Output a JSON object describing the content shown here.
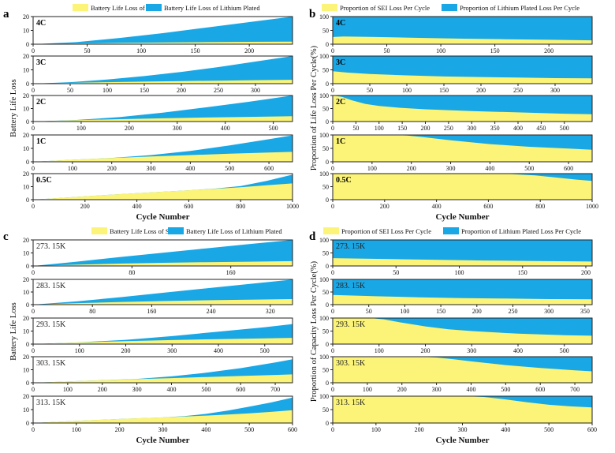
{
  "colors": {
    "sei": "#fbf478",
    "lithium": "#1aa7e6",
    "frame": "#222222"
  },
  "panels": [
    {
      "letter": "a",
      "legend": [
        "Battery Life Loss of SEI",
        "Battery Life Loss of Lithium Plated"
      ],
      "ylabel": "Battery Life Loss",
      "xlabel": "Cycle Number",
      "label_style": "bold"
    },
    {
      "letter": "b",
      "legend": [
        "Proportion of SEI Loss Per Cycle",
        "Proportion of Lithium Plated Loss Per Cycle"
      ],
      "ylabel": "Proportion of Life Loss Per Cycle(%)",
      "xlabel": "Cycle Number",
      "label_style": "bold"
    },
    {
      "letter": "c",
      "legend": [
        "Battery Life Loss of SEI",
        "Battery Life Loss of Lithium Plated"
      ],
      "ylabel": "Battery Life Loss",
      "xlabel": "Cycle Number",
      "label_style": "mono"
    },
    {
      "letter": "d",
      "legend": [
        "Proportion of SEI Loss Per Cycle",
        "Proportion of Lithium Plated Loss Per Cycle"
      ],
      "ylabel": "Proportion of Capacity Loss Per Cycle(%)",
      "xlabel": "Cycle Number",
      "label_style": "mono"
    }
  ],
  "chart_data": [
    {
      "panel": "a",
      "type": "area",
      "stacked": true,
      "subplots": [
        {
          "label": "4C",
          "xlim": [
            0,
            240
          ],
          "ylim": [
            0,
            20
          ],
          "xticks": [
            50,
            100,
            150,
            200
          ],
          "yticks": [
            0,
            10,
            20
          ],
          "x": [
            0,
            40,
            80,
            120,
            160,
            200,
            240
          ],
          "sei": [
            0,
            0.5,
            0.9,
            1.2,
            1.5,
            1.7,
            1.9
          ],
          "lithium": [
            0,
            1.0,
            3.6,
            6.8,
            10.5,
            14.3,
            18.1
          ]
        },
        {
          "label": "3C",
          "xlim": [
            0,
            350
          ],
          "ylim": [
            0,
            20
          ],
          "xticks": [
            50,
            100,
            150,
            200,
            250,
            300
          ],
          "yticks": [
            0,
            10,
            20
          ],
          "x": [
            0,
            50,
            100,
            150,
            200,
            250,
            300,
            350
          ],
          "sei": [
            0,
            0.6,
            1.1,
            1.5,
            1.9,
            2.2,
            2.5,
            2.8
          ],
          "lithium": [
            0,
            0.5,
            1.9,
            4.0,
            6.6,
            9.8,
            13.5,
            17.2
          ]
        },
        {
          "label": "2C",
          "xlim": [
            0,
            540
          ],
          "ylim": [
            0,
            20
          ],
          "xticks": [
            100,
            200,
            300,
            400,
            500
          ],
          "yticks": [
            0,
            10,
            20
          ],
          "x": [
            0,
            90,
            180,
            270,
            360,
            450,
            540
          ],
          "sei": [
            0,
            1.0,
            1.8,
            2.5,
            3.1,
            3.6,
            4.1
          ],
          "lithium": [
            0,
            0.2,
            1.6,
            4.3,
            7.8,
            11.6,
            15.9
          ]
        },
        {
          "label": "1C",
          "xlim": [
            0,
            660
          ],
          "ylim": [
            0,
            20
          ],
          "xticks": [
            100,
            200,
            300,
            400,
            500,
            600
          ],
          "yticks": [
            0,
            10,
            20
          ],
          "x": [
            0,
            100,
            200,
            300,
            400,
            500,
            600,
            660
          ],
          "sei": [
            0,
            1.5,
            2.8,
            4.0,
            5.0,
            6.0,
            6.9,
            7.4
          ],
          "lithium": [
            0,
            0,
            0.1,
            1.0,
            3.1,
            6.2,
            9.9,
            12.3
          ]
        },
        {
          "label": "0.5C",
          "xlim": [
            0,
            1000
          ],
          "ylim": [
            0,
            20
          ],
          "xticks": [
            200,
            400,
            600,
            800,
            1000
          ],
          "yticks": [
            0,
            10,
            20
          ],
          "x": [
            0,
            200,
            400,
            600,
            700,
            800,
            900,
            1000
          ],
          "sei": [
            0,
            2.6,
            5.0,
            7.2,
            8.3,
            9.5,
            11.0,
            12.5
          ],
          "lithium": [
            0,
            0,
            0,
            0,
            0.2,
            1.0,
            3.4,
            6.8
          ]
        }
      ]
    },
    {
      "panel": "b",
      "type": "area",
      "stacked": true,
      "subplots": [
        {
          "label": "4C",
          "xlim": [
            0,
            240
          ],
          "ylim": [
            0,
            100
          ],
          "xticks": [
            50,
            100,
            150,
            200
          ],
          "yticks": [
            0,
            50,
            100
          ],
          "x": [
            0,
            10,
            40,
            80,
            120,
            160,
            200,
            240
          ],
          "sei": [
            26,
            28,
            26,
            23,
            20,
            18,
            16,
            14
          ]
        },
        {
          "label": "3C",
          "xlim": [
            0,
            350
          ],
          "ylim": [
            0,
            100
          ],
          "xticks": [
            50,
            100,
            150,
            200,
            250,
            300
          ],
          "yticks": [
            0,
            50,
            100
          ],
          "x": [
            0,
            20,
            50,
            100,
            150,
            200,
            250,
            300,
            350
          ],
          "sei": [
            45,
            40,
            35,
            30,
            26,
            24,
            22,
            20,
            19
          ]
        },
        {
          "label": "2C",
          "xlim": [
            0,
            560
          ],
          "ylim": [
            0,
            100
          ],
          "xticks": [
            50,
            100,
            150,
            200,
            250,
            300,
            350,
            400,
            450,
            500
          ],
          "yticks": [
            0,
            50,
            100
          ],
          "x": [
            0,
            20,
            40,
            70,
            100,
            150,
            200,
            300,
            400,
            500,
            560
          ],
          "sei": [
            100,
            95,
            82,
            68,
            60,
            52,
            47,
            40,
            35,
            30,
            28
          ]
        },
        {
          "label": "1C",
          "xlim": [
            0,
            660
          ],
          "ylim": [
            0,
            100
          ],
          "xticks": [
            100,
            200,
            300,
            400,
            500,
            600
          ],
          "yticks": [
            0,
            50,
            100
          ],
          "x": [
            0,
            150,
            190,
            230,
            300,
            400,
            500,
            600,
            660
          ],
          "sei": [
            100,
            100,
            98,
            92,
            80,
            66,
            56,
            49,
            45
          ]
        },
        {
          "label": "0.5C",
          "xlim": [
            0,
            1000
          ],
          "ylim": [
            0,
            100
          ],
          "xticks": [
            200,
            400,
            600,
            800,
            1000
          ],
          "yticks": [
            0,
            50,
            100
          ],
          "x": [
            0,
            500,
            650,
            700,
            780,
            860,
            940,
            1000
          ],
          "sei": [
            100,
            100,
            100,
            98,
            93,
            85,
            77,
            72
          ]
        }
      ]
    },
    {
      "panel": "c",
      "type": "area",
      "stacked": true,
      "subplots": [
        {
          "label": "273. 15K",
          "xlim": [
            0,
            210
          ],
          "ylim": [
            0,
            20
          ],
          "xticks": [
            80,
            160
          ],
          "yticks": [
            0,
            10,
            20
          ],
          "x": [
            0,
            35,
            70,
            105,
            140,
            175,
            210
          ],
          "sei": [
            0,
            1.0,
            1.8,
            2.4,
            2.9,
            3.3,
            3.7
          ],
          "lithium": [
            0,
            2.3,
            5.0,
            7.8,
            10.6,
            13.5,
            16.3
          ]
        },
        {
          "label": "283. 15K",
          "xlim": [
            0,
            350
          ],
          "ylim": [
            0,
            20
          ],
          "xticks": [
            80,
            160,
            240,
            320
          ],
          "yticks": [
            0,
            10,
            20
          ],
          "x": [
            0,
            60,
            120,
            180,
            240,
            300,
            350
          ],
          "sei": [
            0,
            1.2,
            2.1,
            2.9,
            3.5,
            4.0,
            4.4
          ],
          "lithium": [
            0,
            1.4,
            3.9,
            6.8,
            9.8,
            12.9,
            15.4
          ]
        },
        {
          "label": "293. 15K",
          "xlim": [
            0,
            560
          ],
          "ylim": [
            0,
            20
          ],
          "xticks": [
            100,
            200,
            300,
            400,
            500
          ],
          "yticks": [
            0,
            10,
            20
          ],
          "x": [
            0,
            100,
            200,
            300,
            400,
            500,
            560
          ],
          "sei": [
            0,
            1.3,
            2.3,
            3.1,
            3.8,
            4.4,
            4.8
          ],
          "lithium": [
            0,
            0.1,
            1.0,
            3.0,
            5.8,
            8.6,
            10.6
          ]
        },
        {
          "label": "303. 15K",
          "xlim": [
            0,
            750
          ],
          "ylim": [
            0,
            20
          ],
          "xticks": [
            100,
            200,
            300,
            400,
            500,
            600,
            700
          ],
          "yticks": [
            0,
            10,
            20
          ],
          "x": [
            0,
            150,
            300,
            400,
            500,
            600,
            700,
            750
          ],
          "sei": [
            0,
            1.5,
            2.8,
            3.6,
            4.4,
            5.2,
            6.0,
            6.4
          ],
          "lithium": [
            0,
            0,
            0.2,
            1.3,
            3.3,
            6.0,
            9.6,
            11.6
          ]
        },
        {
          "label": "313. 15K",
          "xlim": [
            0,
            600
          ],
          "ylim": [
            0,
            20
          ],
          "xticks": [
            100,
            200,
            300,
            400,
            500,
            600
          ],
          "yticks": [
            0,
            10,
            20
          ],
          "x": [
            0,
            100,
            200,
            300,
            350,
            400,
            450,
            500,
            550,
            600
          ],
          "sei": [
            0,
            1.6,
            3.0,
            4.2,
            4.8,
            5.5,
            6.3,
            7.2,
            8.3,
            9.6
          ],
          "lithium": [
            0,
            0,
            0,
            0,
            0.3,
            1.3,
            3.0,
            5.0,
            7.0,
            9.4
          ]
        }
      ]
    },
    {
      "panel": "d",
      "type": "area",
      "stacked": true,
      "subplots": [
        {
          "label": "273. 15K",
          "xlim": [
            0,
            205
          ],
          "ylim": [
            0,
            100
          ],
          "xticks": [
            50,
            100,
            150,
            200
          ],
          "yticks": [
            0,
            50,
            100
          ],
          "x": [
            0,
            40,
            80,
            120,
            160,
            205
          ],
          "sei": [
            30,
            27,
            24,
            21,
            19,
            17
          ]
        },
        {
          "label": "283. 15K",
          "xlim": [
            0,
            360
          ],
          "ylim": [
            0,
            100
          ],
          "xticks": [
            50,
            100,
            150,
            200,
            250,
            300,
            350
          ],
          "yticks": [
            0,
            50,
            100
          ],
          "x": [
            0,
            60,
            120,
            180,
            240,
            300,
            360
          ],
          "sei": [
            38,
            33,
            29,
            26,
            24,
            22,
            21
          ]
        },
        {
          "label": "293. 15K",
          "xlim": [
            0,
            560
          ],
          "ylim": [
            0,
            100
          ],
          "xticks": [
            100,
            200,
            300,
            400,
            500
          ],
          "yticks": [
            0,
            50,
            100
          ],
          "x": [
            0,
            80,
            110,
            150,
            200,
            250,
            300,
            400,
            500,
            560
          ],
          "sei": [
            100,
            100,
            95,
            82,
            68,
            57,
            50,
            40,
            34,
            32
          ]
        },
        {
          "label": "303. 15K",
          "xlim": [
            0,
            750
          ],
          "ylim": [
            0,
            100
          ],
          "xticks": [
            100,
            200,
            300,
            400,
            500,
            600,
            700
          ],
          "yticks": [
            0,
            50,
            100
          ],
          "x": [
            0,
            250,
            300,
            350,
            400,
            500,
            600,
            700,
            750
          ],
          "sei": [
            100,
            100,
            97,
            90,
            82,
            68,
            57,
            48,
            44
          ]
        },
        {
          "label": "313. 15K",
          "xlim": [
            0,
            600
          ],
          "ylim": [
            0,
            100
          ],
          "xticks": [
            100,
            200,
            300,
            400,
            500,
            600
          ],
          "yticks": [
            0,
            50,
            100
          ],
          "x": [
            0,
            300,
            350,
            400,
            450,
            500,
            550,
            600
          ],
          "sei": [
            100,
            100,
            97,
            88,
            77,
            68,
            62,
            58
          ]
        }
      ]
    }
  ]
}
